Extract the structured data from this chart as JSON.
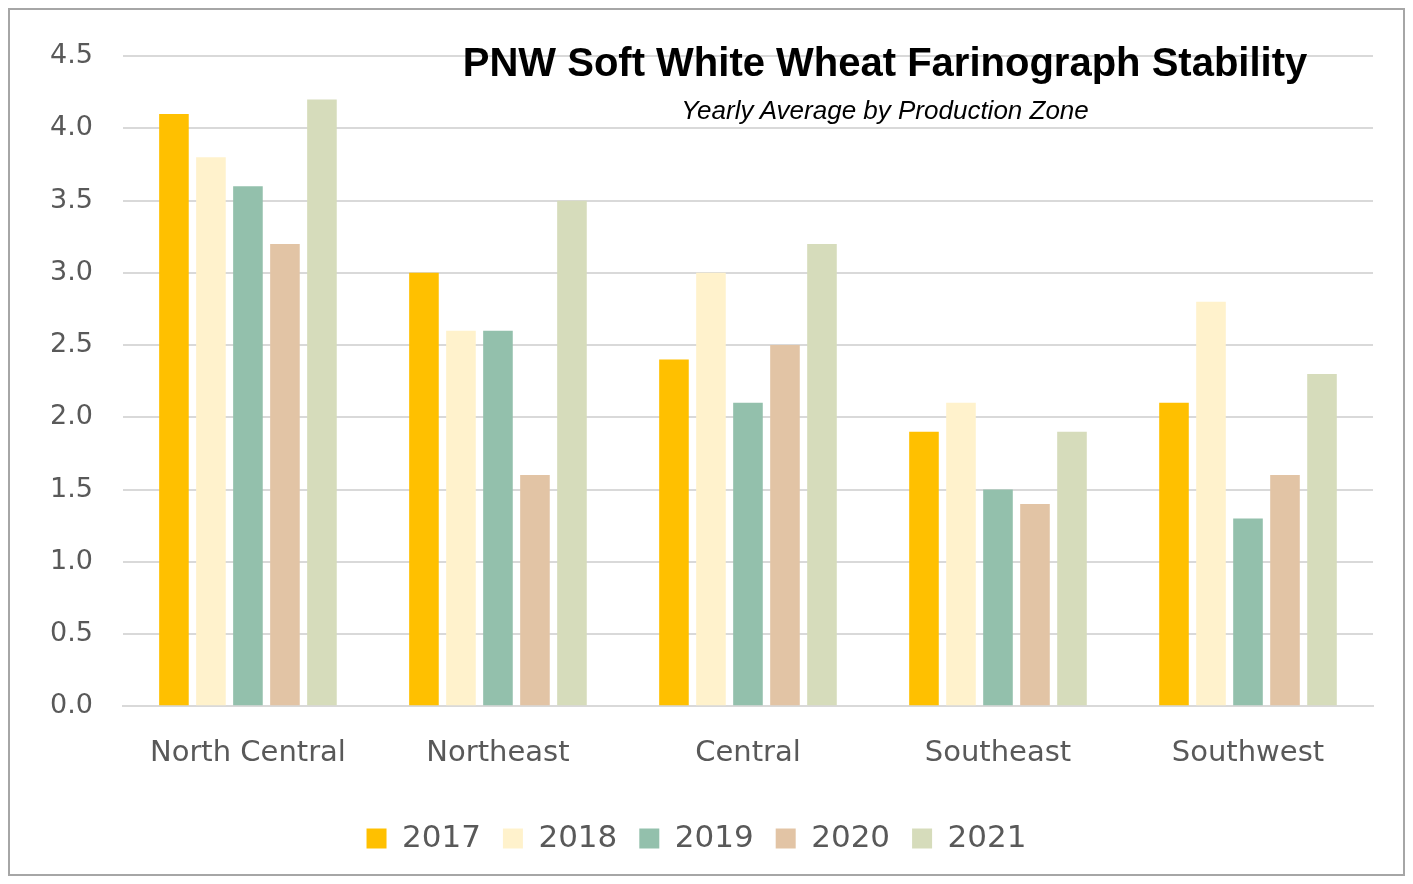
{
  "chart_data": {
    "type": "bar",
    "title": "PNW Soft White Wheat Farinograph Stability",
    "subtitle": "Yearly Average by Production Zone",
    "categories": [
      "North Central",
      "Northeast",
      "Central",
      "Southeast",
      "Southwest"
    ],
    "series": [
      {
        "name": "2017",
        "color": "#ffc000",
        "values": [
          4.1,
          3.0,
          2.4,
          1.9,
          2.1
        ]
      },
      {
        "name": "2018",
        "color": "#fff2cc",
        "values": [
          3.8,
          2.6,
          3.0,
          2.1,
          2.8
        ]
      },
      {
        "name": "2019",
        "color": "#93c0ac",
        "values": [
          3.6,
          2.6,
          2.1,
          1.5,
          1.3
        ]
      },
      {
        "name": "2020",
        "color": "#e2c4a5",
        "values": [
          3.2,
          1.6,
          2.5,
          1.4,
          1.6
        ]
      },
      {
        "name": "2021",
        "color": "#d6dcbb",
        "values": [
          4.2,
          3.5,
          3.2,
          1.9,
          2.3
        ]
      }
    ],
    "ylim": [
      0,
      4.5
    ],
    "yticks": [
      {
        "value": 0,
        "label": "0.0"
      },
      {
        "value": 0.5,
        "label": "0.5"
      },
      {
        "value": 1,
        "label": "1.0"
      },
      {
        "value": 1.5,
        "label": "1.5"
      },
      {
        "value": 2,
        "label": "2.0"
      },
      {
        "value": 2.5,
        "label": "2.5"
      },
      {
        "value": 3,
        "label": "3.0"
      },
      {
        "value": 3.5,
        "label": "3.5"
      },
      {
        "value": 4,
        "label": "4.0"
      },
      {
        "value": 4.5,
        "label": "4.5"
      }
    ],
    "grid": "y",
    "legend": "bottom"
  }
}
